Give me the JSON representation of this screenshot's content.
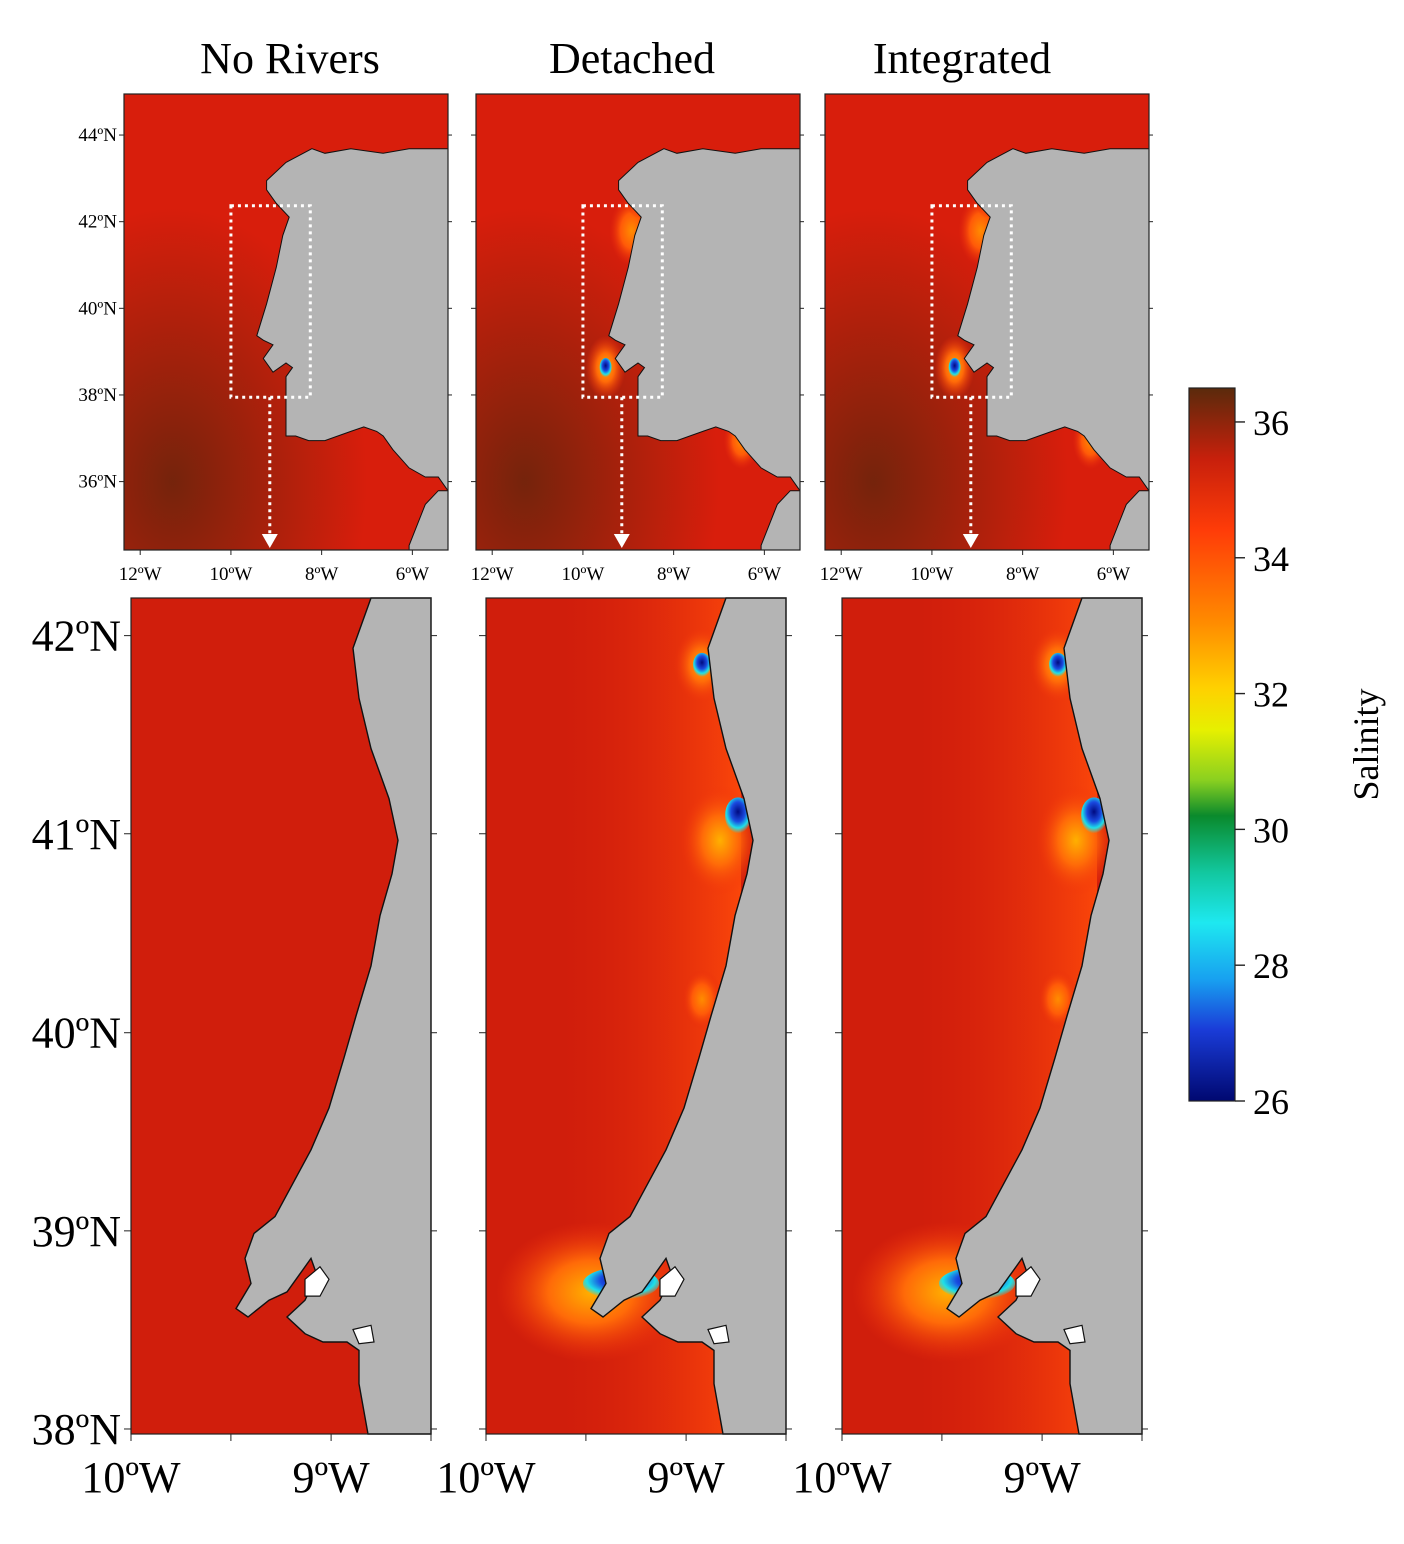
{
  "titles": [
    "No Rivers",
    "Detached",
    "Integrated"
  ],
  "overview": {
    "lat_labels": [
      "44ºN",
      "42ºN",
      "40ºN",
      "38ºN",
      "36ºN"
    ],
    "lon_labels": [
      "12ºW",
      "10ºW",
      "8ºW",
      "6ºW"
    ]
  },
  "zoom": {
    "lat_labels": [
      "42ºN",
      "41ºN",
      "40ºN",
      "39ºN",
      "38ºN"
    ],
    "lon_labels": [
      "10ºW",
      "9ºW"
    ]
  },
  "colorbar": {
    "label": "Salinity",
    "ticks": [
      "36",
      "34",
      "32",
      "30",
      "28",
      "26"
    ],
    "range": [
      26,
      36.5
    ]
  },
  "colors": {
    "sea": "#d81e0c",
    "land": "#b4b4b4"
  }
}
